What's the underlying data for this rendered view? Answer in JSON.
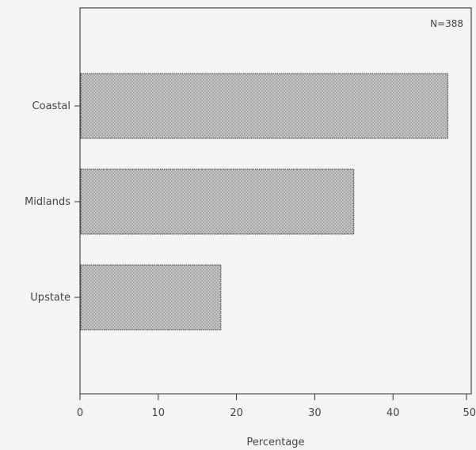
{
  "chart_data": {
    "type": "bar",
    "orientation": "horizontal",
    "categories": [
      "Coastal",
      "Midlands",
      "Upstate"
    ],
    "values": [
      47,
      35,
      18
    ],
    "xlabel": "Percentage",
    "ylabel": "",
    "title": "",
    "xlim": [
      0,
      50
    ],
    "xticks": [
      "0",
      "10",
      "20",
      "30",
      "40",
      "50"
    ],
    "annotation": "N=388",
    "grid": false,
    "bar_color": "#b8b8b6",
    "bar_edge_color": "#3a3a3a"
  }
}
